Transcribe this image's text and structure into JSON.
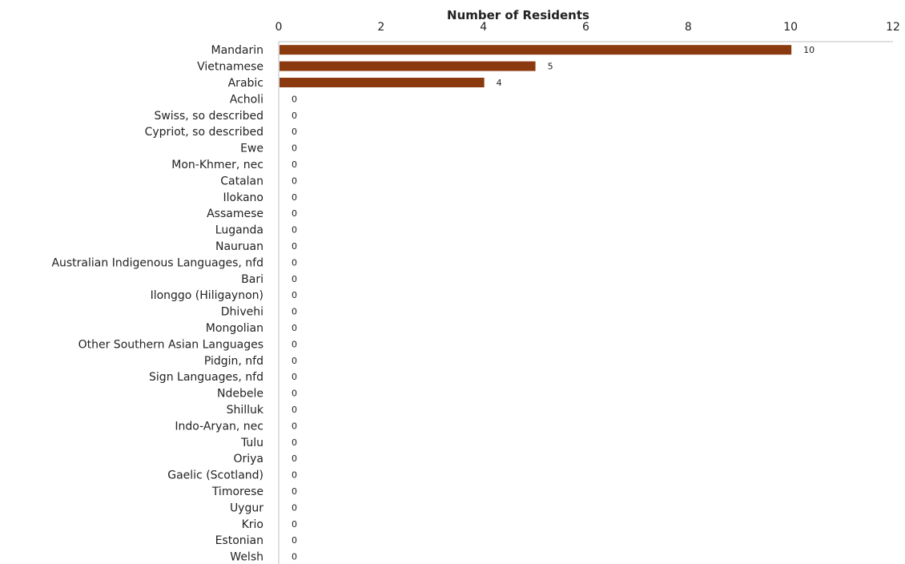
{
  "chart_data": {
    "type": "bar",
    "orientation": "horizontal",
    "title": "",
    "xlabel": "Number of Residents",
    "ylabel": "",
    "xlim": [
      0,
      12
    ],
    "xticks": [
      0,
      2,
      4,
      6,
      8,
      10,
      12
    ],
    "x_axis_position": "top",
    "grid": false,
    "legend": "none",
    "data_labels": true,
    "bar_color": "#8B3A0F",
    "categories": [
      "Mandarin",
      "Vietnamese",
      "Arabic",
      "Acholi",
      "Swiss, so described",
      "Cypriot, so described",
      "Ewe",
      "Mon-Khmer, nec",
      "Catalan",
      "Ilokano",
      "Assamese",
      "Luganda",
      "Nauruan",
      "Australian Indigenous Languages, nfd",
      "Bari",
      "Ilonggo (Hiligaynon)",
      "Dhivehi",
      "Mongolian",
      "Other Southern Asian Languages",
      "Pidgin, nfd",
      "Sign Languages, nfd",
      "Ndebele",
      "Shilluk",
      "Indo-Aryan, nec",
      "Tulu",
      "Oriya",
      "Gaelic (Scotland)",
      "Timorese",
      "Uygur",
      "Krio",
      "Estonian",
      "Welsh"
    ],
    "values": [
      10,
      5,
      4,
      0,
      0,
      0,
      0,
      0,
      0,
      0,
      0,
      0,
      0,
      0,
      0,
      0,
      0,
      0,
      0,
      0,
      0,
      0,
      0,
      0,
      0,
      0,
      0,
      0,
      0,
      0,
      0,
      0
    ]
  }
}
